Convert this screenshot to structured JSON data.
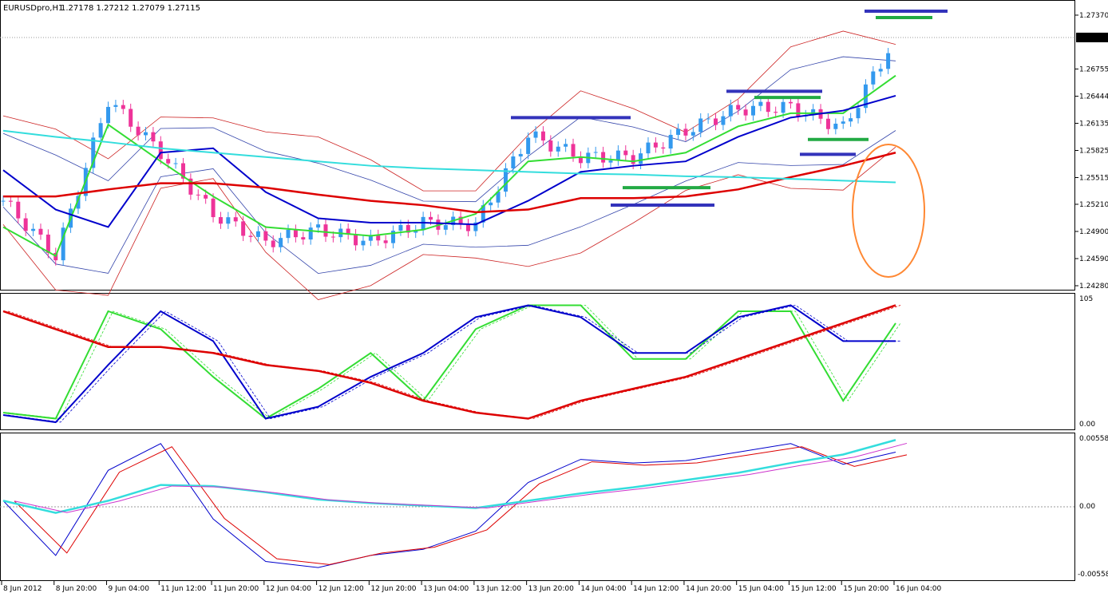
{
  "header": {
    "symbol": "EURUSDpro,H1",
    "ohlc": "1.27178 1.27212 1.27079 1.27115"
  },
  "price_axis": {
    "ticks": [
      "1.27370",
      "1.26755",
      "1.26444",
      "1.26135",
      "1.25825",
      "1.25515",
      "1.25210",
      "1.24900",
      "1.24590",
      "1.24280"
    ],
    "current": "1.27115"
  },
  "oscillator1_axis": {
    "top": "105",
    "bottom": "0.00"
  },
  "oscillator2_axis": {
    "top": "0.005581",
    "mid": "0.00",
    "bottom": "-0.005581"
  },
  "time_axis": {
    "ticks": [
      "8 Jun 2012",
      "8 Jun 20:00",
      "9 Jun 04:00",
      "11 Jun 12:00",
      "11 Jun 20:00",
      "12 Jun 04:00",
      "12 Jun 12:00",
      "12 Jun 20:00",
      "13 Jun 04:00",
      "13 Jun 12:00",
      "13 Jun 20:00",
      "14 Jun 04:00",
      "14 Jun 12:00",
      "14 Jun 20:00",
      "15 Jun 04:00",
      "15 Jun 12:00",
      "15 Jun 20:00",
      "16 Jun 04:00"
    ]
  },
  "colors": {
    "bull": "#3399ee",
    "bear": "#ee3399",
    "ma_green": "#33dd33",
    "ma_blue": "#0000cc",
    "ma_red": "#dd0000",
    "ma_cyan": "#33dddd",
    "level_blue": "#3333bb",
    "level_green": "#22aa44",
    "circle": "#ff8833"
  },
  "chart_data": [
    {
      "type": "candlestick",
      "title": "EURUSDpro,H1",
      "ylim": [
        1.2428,
        1.2747
      ],
      "x": [
        "8 Jun 2012",
        "8 Jun 20:00",
        "9 Jun 04:00",
        "11 Jun 12:00",
        "11 Jun 20:00",
        "12 Jun 04:00",
        "12 Jun 12:00",
        "12 Jun 20:00",
        "13 Jun 04:00",
        "13 Jun 12:00",
        "13 Jun 20:00",
        "14 Jun 04:00",
        "14 Jun 12:00",
        "14 Jun 20:00",
        "15 Jun 04:00",
        "15 Jun 12:00",
        "15 Jun 20:00",
        "16 Jun 04:00"
      ],
      "close": [
        1.2525,
        1.2462,
        1.264,
        1.258,
        1.251,
        1.2478,
        1.2492,
        1.2478,
        1.25,
        1.2498,
        1.26,
        1.2575,
        1.2575,
        1.2605,
        1.263,
        1.2632,
        1.2608,
        1.2712
      ],
      "series": [
        {
          "name": "",
          "values": [
            1.2495,
            1.2462,
            1.2612,
            1.257,
            1.253,
            1.2495,
            1.249,
            1.2485,
            1.2492,
            1.251,
            1.257,
            1.2575,
            1.257,
            1.258,
            1.261,
            1.2625,
            1.2625,
            1.2668
          ]
        },
        {
          "name": "",
          "values": [
            1.256,
            1.2515,
            1.2495,
            1.258,
            1.2585,
            1.2535,
            1.2505,
            1.25,
            1.25,
            1.2498,
            1.2525,
            1.2558,
            1.2565,
            1.257,
            1.2598,
            1.262,
            1.2628,
            1.2645
          ]
        },
        {
          "name": "",
          "values": [
            1.253,
            1.253,
            1.2538,
            1.2545,
            1.2545,
            1.254,
            1.2532,
            1.2525,
            1.252,
            1.2512,
            1.2515,
            1.2528,
            1.2528,
            1.253,
            1.2538,
            1.2552,
            1.2565,
            1.258
          ]
        },
        {
          "name": "",
          "values": [
            1.2605,
            1.2598,
            1.2592,
            1.2585,
            1.258,
            1.2575,
            1.257,
            1.2565,
            1.2562,
            1.256,
            1.2558,
            1.2556,
            1.2555,
            1.2553,
            1.2552,
            1.255,
            1.2548,
            1.2546
          ]
        }
      ],
      "levels_blue": [
        1.262,
        1.265,
        1.252,
        1.2578,
        1.2747
      ],
      "levels_green": [
        1.254,
        1.2643,
        1.2595,
        1.2735
      ]
    },
    {
      "type": "line",
      "ylim": [
        0,
        105
      ],
      "series": [
        {
          "name": "",
          "values": [
            10,
            5,
            95,
            80,
            40,
            5,
            30,
            60,
            20,
            80,
            100,
            100,
            55,
            55,
            95,
            95,
            20,
            85
          ]
        },
        {
          "name": "",
          "values": [
            8,
            2,
            50,
            95,
            70,
            5,
            15,
            40,
            60,
            90,
            100,
            90,
            60,
            60,
            90,
            100,
            70,
            70
          ]
        },
        {
          "name": "",
          "values": [
            95,
            80,
            65,
            65,
            60,
            50,
            45,
            35,
            20,
            10,
            5,
            20,
            30,
            40,
            55,
            70,
            85,
            100
          ]
        }
      ]
    },
    {
      "type": "line",
      "ylim": [
        -0.005581,
        0.005581
      ],
      "series": [
        {
          "name": "",
          "values": [
            0.0005,
            -0.004,
            0.003,
            0.0052,
            -0.001,
            -0.0045,
            -0.005,
            -0.004,
            -0.0035,
            -0.002,
            0.002,
            0.0039,
            0.0036,
            0.0038,
            0.0045,
            0.0052,
            0.0035,
            0.0045
          ]
        },
        {
          "name": "",
          "values": [
            0.0005,
            -0.0005,
            0.0005,
            0.0018,
            0.0017,
            0.0012,
            0.0006,
            0.0003,
            0.0001,
            -0.0001,
            0.0005,
            0.0011,
            0.0016,
            0.0022,
            0.0028,
            0.0036,
            0.0043,
            0.0055
          ]
        }
      ]
    }
  ]
}
